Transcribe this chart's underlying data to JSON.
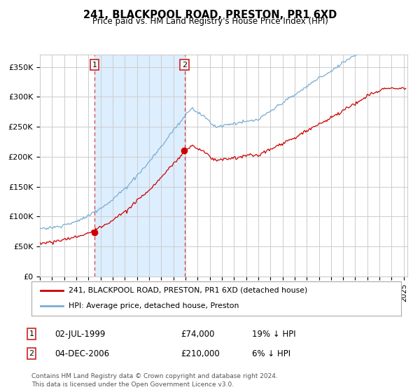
{
  "title": "241, BLACKPOOL ROAD, PRESTON, PR1 6XD",
  "subtitle": "Price paid vs. HM Land Registry's House Price Index (HPI)",
  "sale1_date": "02-JUL-1999",
  "sale1_price": 74000,
  "sale1_label": "19% ↓ HPI",
  "sale2_date": "04-DEC-2006",
  "sale2_price": 210000,
  "sale2_label": "6% ↓ HPI",
  "legend_line1": "241, BLACKPOOL ROAD, PRESTON, PR1 6XD (detached house)",
  "legend_line2": "HPI: Average price, detached house, Preston",
  "footnote": "Contains HM Land Registry data © Crown copyright and database right 2024.\nThis data is licensed under the Open Government Licence v3.0.",
  "hpi_color": "#7aadd4",
  "price_color": "#cc0000",
  "shade_color": "#ddeeff",
  "grid_color": "#cccccc",
  "ylim": [
    0,
    370000
  ],
  "yticks": [
    0,
    50000,
    100000,
    150000,
    200000,
    250000,
    300000,
    350000
  ],
  "ytick_labels": [
    "£0",
    "£50K",
    "£100K",
    "£150K",
    "£200K",
    "£250K",
    "£300K",
    "£350K"
  ],
  "sale1_year": 1999.5,
  "sale2_year": 2006.92,
  "xlim_start": 1995,
  "xlim_end": 2025.3
}
